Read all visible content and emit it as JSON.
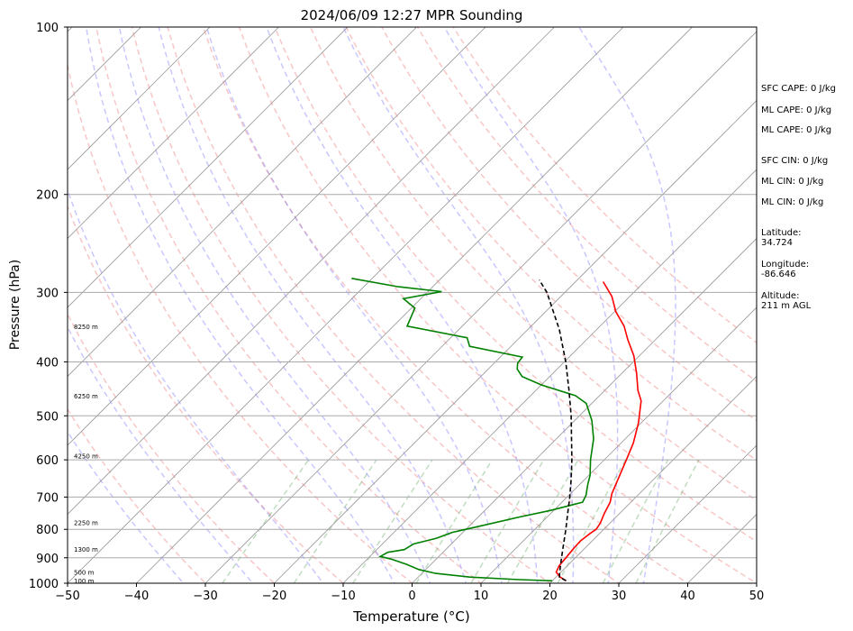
{
  "chart_data": {
    "type": "line",
    "title": "2024/06/09 12:27 MPR Sounding",
    "xlabel": "Temperature (°C)",
    "ylabel": "Pressure (hPa)",
    "xlim": [
      -50,
      50
    ],
    "ylim": [
      1000,
      100
    ],
    "yscale": "log",
    "grid": true,
    "x_ticks": [
      "−50",
      "−40",
      "−30",
      "−20",
      "−10",
      "0",
      "10",
      "20",
      "30",
      "40",
      "50"
    ],
    "x_tick_values": [
      -50,
      -40,
      -30,
      -20,
      -10,
      0,
      10,
      20,
      30,
      40,
      50
    ],
    "y_ticks": [
      "100",
      "200",
      "300",
      "400",
      "500",
      "600",
      "700",
      "800",
      "900",
      "1000"
    ],
    "y_tick_values": [
      100,
      200,
      300,
      400,
      500,
      600,
      700,
      800,
      900,
      1000
    ],
    "height_labels": [
      {
        "text": "100 m",
        "p": 988
      },
      {
        "text": "500 m",
        "p": 955
      },
      {
        "text": "1300 m",
        "p": 868
      },
      {
        "text": "2250 m",
        "p": 778
      },
      {
        "text": "4250 m",
        "p": 590
      },
      {
        "text": "6250 m",
        "p": 460
      },
      {
        "text": "8250 m",
        "p": 345
      }
    ],
    "series": [
      {
        "color": "#ff0000",
        "values": [
          {
            "p": 990,
            "t": 22.0
          },
          {
            "p": 975,
            "t": 20.6
          },
          {
            "p": 955,
            "t": 19.3
          },
          {
            "p": 930,
            "t": 18.8
          },
          {
            "p": 895,
            "t": 18.6
          },
          {
            "p": 865,
            "t": 18.4
          },
          {
            "p": 840,
            "t": 18.3
          },
          {
            "p": 815,
            "t": 18.6
          },
          {
            "p": 800,
            "t": 18.9
          },
          {
            "p": 780,
            "t": 18.6
          },
          {
            "p": 750,
            "t": 17.8
          },
          {
            "p": 715,
            "t": 17.0
          },
          {
            "p": 690,
            "t": 16.0
          },
          {
            "p": 650,
            "t": 14.8
          },
          {
            "p": 600,
            "t": 13.2
          },
          {
            "p": 560,
            "t": 11.8
          },
          {
            "p": 515,
            "t": 9.6
          },
          {
            "p": 470,
            "t": 6.8
          },
          {
            "p": 450,
            "t": 4.8
          },
          {
            "p": 420,
            "t": 2.2
          },
          {
            "p": 390,
            "t": -0.8
          },
          {
            "p": 365,
            "t": -4.0
          },
          {
            "p": 345,
            "t": -6.5
          },
          {
            "p": 325,
            "t": -9.8
          },
          {
            "p": 305,
            "t": -12.6
          },
          {
            "p": 287,
            "t": -16.0
          }
        ]
      },
      {
        "color": "#008000",
        "values": [
          {
            "p": 990,
            "t": 20.0
          },
          {
            "p": 985,
            "t": 15.0
          },
          {
            "p": 975,
            "t": 7.5
          },
          {
            "p": 960,
            "t": 2.0
          },
          {
            "p": 945,
            "t": -1.0
          },
          {
            "p": 925,
            "t": -3.5
          },
          {
            "p": 905,
            "t": -6.5
          },
          {
            "p": 895,
            "t": -8.5
          },
          {
            "p": 880,
            "t": -8.0
          },
          {
            "p": 870,
            "t": -6.0
          },
          {
            "p": 850,
            "t": -5.5
          },
          {
            "p": 830,
            "t": -3.0
          },
          {
            "p": 810,
            "t": -1.5
          },
          {
            "p": 790,
            "t": 1.5
          },
          {
            "p": 760,
            "t": 6.0
          },
          {
            "p": 740,
            "t": 9.5
          },
          {
            "p": 715,
            "t": 13.0
          },
          {
            "p": 695,
            "t": 12.5
          },
          {
            "p": 665,
            "t": 11.2
          },
          {
            "p": 640,
            "t": 10.2
          },
          {
            "p": 600,
            "t": 8.0
          },
          {
            "p": 550,
            "t": 5.4
          },
          {
            "p": 510,
            "t": 2.5
          },
          {
            "p": 475,
            "t": -0.8
          },
          {
            "p": 460,
            "t": -3.5
          },
          {
            "p": 440,
            "t": -10.0
          },
          {
            "p": 425,
            "t": -14.0
          },
          {
            "p": 412,
            "t": -15.8
          },
          {
            "p": 402,
            "t": -16.6
          },
          {
            "p": 392,
            "t": -16.8
          },
          {
            "p": 375,
            "t": -26.0
          },
          {
            "p": 362,
            "t": -27.6
          },
          {
            "p": 345,
            "t": -38.0
          },
          {
            "p": 320,
            "t": -39.5
          },
          {
            "p": 308,
            "t": -42.5
          },
          {
            "p": 299,
            "t": -38.0
          },
          {
            "p": 293,
            "t": -45.0
          },
          {
            "p": 283,
            "t": -53.0
          }
        ]
      },
      {
        "color": "#000000",
        "values": [
          {
            "p": 990,
            "t": 22.0
          },
          {
            "p": 975,
            "t": 20.5
          },
          {
            "p": 955,
            "t": 19.8
          },
          {
            "p": 900,
            "t": 18.0
          },
          {
            "p": 850,
            "t": 16.3
          },
          {
            "p": 800,
            "t": 14.5
          },
          {
            "p": 750,
            "t": 12.5
          },
          {
            "p": 700,
            "t": 10.4
          },
          {
            "p": 650,
            "t": 8.0
          },
          {
            "p": 600,
            "t": 5.3
          },
          {
            "p": 550,
            "t": 2.2
          },
          {
            "p": 500,
            "t": -1.2
          },
          {
            "p": 450,
            "t": -5.2
          },
          {
            "p": 400,
            "t": -9.8
          },
          {
            "p": 350,
            "t": -15.4
          },
          {
            "p": 300,
            "t": -22.6
          },
          {
            "p": 285,
            "t": -25.5
          }
        ]
      }
    ],
    "dry_adiabats_C": [
      -30,
      -20,
      -10,
      0,
      10,
      20,
      30,
      40,
      50,
      60,
      70,
      80,
      90,
      100,
      110
    ],
    "moist_adiabats_C": [
      -30,
      -20,
      -10,
      0,
      5,
      10,
      15,
      20,
      25,
      30,
      35
    ],
    "mixing_ratios_gkg": [
      0.4,
      1,
      2,
      4,
      7,
      10,
      16,
      24,
      32
    ]
  },
  "annotations": {
    "sfc_cape": "SFC CAPE: 0 J/kg",
    "ml_cape_1": "ML CAPE: 0 J/kg",
    "ml_cape_2": "ML CAPE: 0 J/kg",
    "sfc_cin": "SFC CIN: 0 J/kg",
    "ml_cin_1": "ML CIN: 0 J/kg",
    "ml_cin_2": "ML CIN: 0 J/kg",
    "latitude": "Latitude:\n34.724",
    "longitude": "Longitude:\n-86.646",
    "altitude": "Altitude:\n211 m AGL"
  }
}
